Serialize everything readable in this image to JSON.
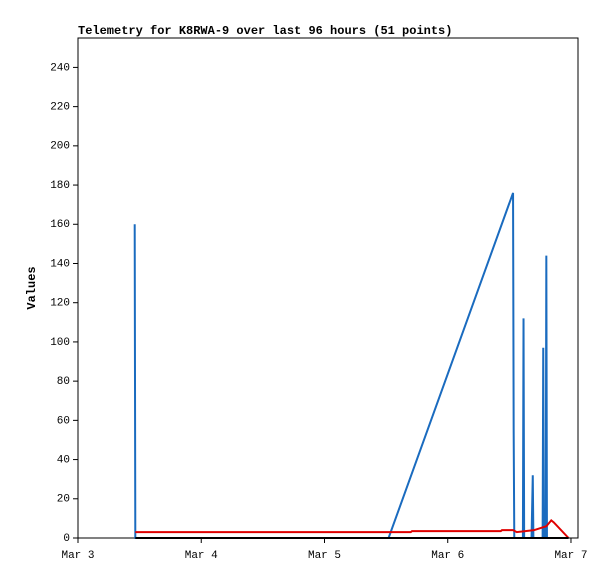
{
  "chart_data": {
    "type": "line",
    "title": "Telemetry for K8RWA-9 over last 96 hours (51 points)",
    "y_label": "Values",
    "xlim": [
      0,
      4.057
    ],
    "xticks": [
      {
        "value": 0,
        "label": "Mar 3"
      },
      {
        "value": 1,
        "label": "Mar 4"
      },
      {
        "value": 2,
        "label": "Mar 5"
      },
      {
        "value": 3,
        "label": "Mar 6"
      },
      {
        "value": 4,
        "label": "Mar 7"
      }
    ],
    "ylim": [
      0,
      255
    ],
    "yticks": [
      0,
      20,
      40,
      60,
      80,
      100,
      120,
      140,
      160,
      180,
      200,
      220,
      240
    ],
    "grid": false,
    "series": [
      {
        "color": "#1a6bbf",
        "x": [
          0.46,
          0.465,
          2.52,
          3.53,
          3.535,
          3.54,
          3.61,
          3.615,
          3.62,
          3.68,
          3.69,
          3.695,
          3.77,
          3.775,
          3.78,
          3.795,
          3.8,
          3.805
        ],
        "values": [
          160,
          0,
          0,
          176,
          55,
          0,
          0,
          112,
          0,
          0,
          32,
          0,
          0,
          97,
          0,
          0,
          144,
          0
        ]
      },
      {
        "color": "#e00000",
        "x": [
          0.465,
          2.7,
          2.71,
          3.43,
          3.44,
          3.53,
          3.56,
          3.7,
          3.75,
          3.8,
          3.84,
          3.86,
          3.98
        ],
        "values": [
          3,
          3,
          3.5,
          3.5,
          4,
          4,
          3,
          4,
          5,
          6,
          9,
          8,
          0
        ]
      },
      {
        "color": "#000000",
        "x": [
          0.465,
          3.98
        ],
        "values": [
          0,
          0
        ]
      }
    ]
  }
}
